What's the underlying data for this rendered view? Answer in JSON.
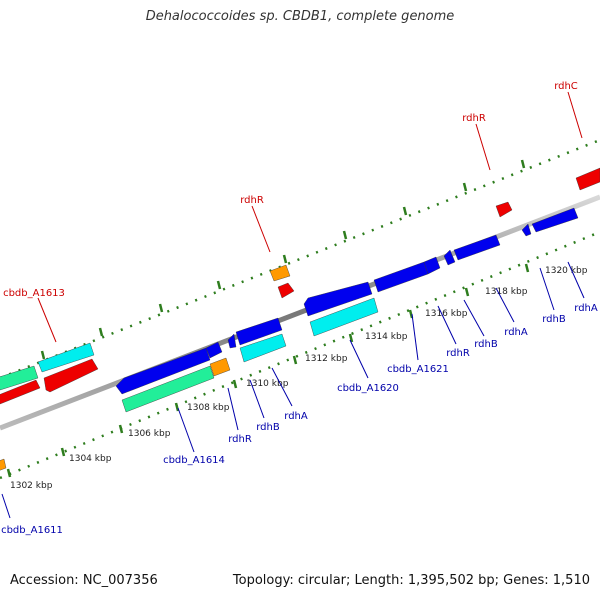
{
  "title": "Dehalococcoides sp. CBDB1, complete genome",
  "footer": {
    "accession": "Accession: NC_007356",
    "stats": "Topology: circular; Length: 1,395,502 bp; Genes: 1,510"
  },
  "colors": {
    "backbone": "#888888",
    "ticks": "#2e7d1e",
    "forward_label": "#cc0000",
    "reverse_label": "#0000aa",
    "gene_red": "#ee0000",
    "gene_blue": "#0000ee",
    "gene_cyan": "#00eeee",
    "gene_green": "#22ee99",
    "gene_orange": "#ff9900"
  },
  "scale_labels": [
    "1302 kbp",
    "1304 kbp",
    "1306 kbp",
    "1308 kbp",
    "1310 kbp",
    "1312 kbp",
    "1314 kbp",
    "1316 kbp",
    "1318 kbp",
    "1320 kbp"
  ],
  "forward_labels": [
    "cbdb_A1613",
    "rdhR",
    "rdhR",
    "rdhC"
  ],
  "reverse_labels": [
    "cbdb_A1611",
    "cbdb_A1614",
    "rdhR",
    "rdhB",
    "rdhA",
    "cbdb_A1620",
    "cbdb_A1621",
    "rdhR",
    "rdhB",
    "rdhA",
    "rdhB",
    "rdhA"
  ]
}
